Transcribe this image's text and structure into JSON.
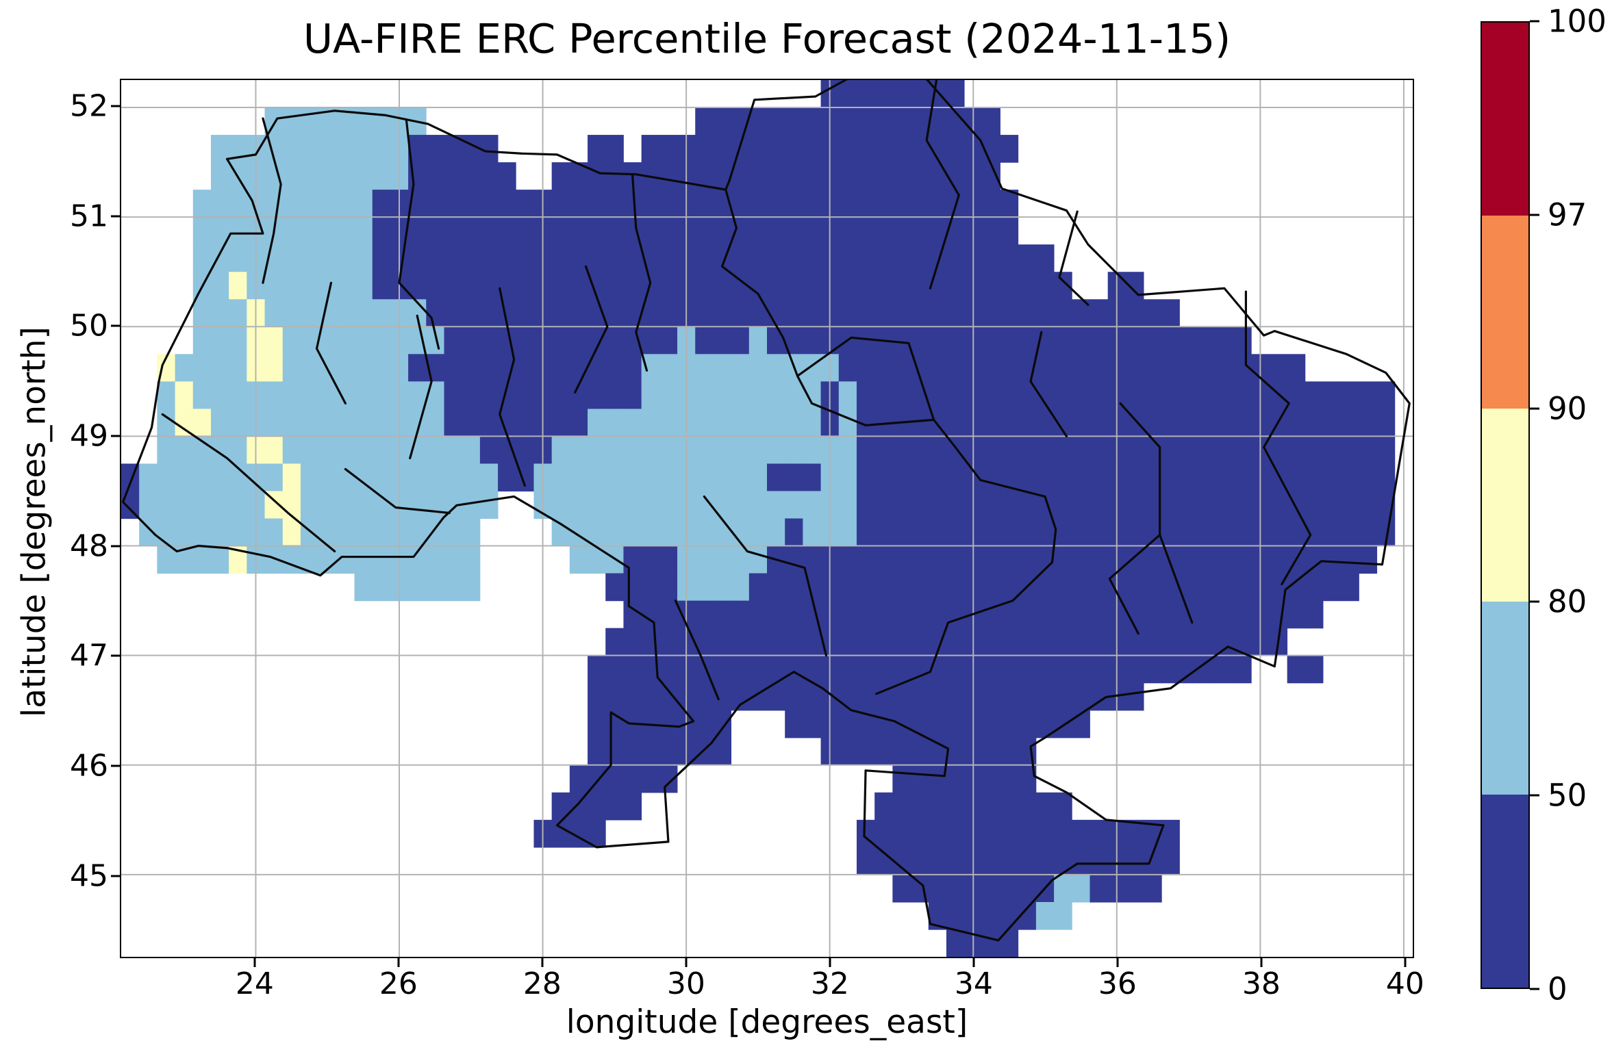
{
  "title": "UA-FIRE ERC Percentile Forecast (2024-11-15)",
  "chart_data": {
    "type": "heatmap",
    "title": "UA-FIRE ERC Percentile Forecast (2024-11-15)",
    "xlabel": "longitude [degrees_east]",
    "ylabel": "latitude [degrees_north]",
    "lon_range": [
      22.125,
      40.125
    ],
    "lat_range": [
      44.25,
      52.25
    ],
    "cell_size_deg": 0.25,
    "x_ticks": [
      24,
      26,
      28,
      30,
      32,
      34,
      36,
      38,
      40
    ],
    "y_ticks": [
      52,
      51,
      50,
      49,
      48,
      47,
      46,
      45
    ],
    "grid_on": true,
    "grid_color": "#b3b3b3",
    "boundary_color": "#0a0a0a",
    "value_classes": {
      "B": {
        "range": "0-50",
        "color": "#333a94"
      },
      "L": {
        "range": "50-80",
        "color": "#8ec4de"
      },
      "Y": {
        "range": "80-90",
        "color": "#fdfdc1"
      }
    },
    "grid_rows_top_to_bottom": [
      ".......................................BBBBBBBB.........................",
      "........LLLLLLLLL...............BBBBBBBBBBBBBBBBB.......................",
      ".....LLLLLLLLLLLBBBBB.....BB.BBBBBBBBBBBBBBBBBBBBB......................",
      ".....LLLLLLLLLLLBBBBBB..BBBBBBBBBBBBBBBBBBBBBBBBB.......................",
      "....LLLLLLLLLLBBBBBBBBBBBBBBBBBBBBBBBBBBBBBBBBBBBB......................",
      "....LLLLLLLLLLBBBBBBBBBBBBBBBBBBBBBBBBBBBBBBBBBBBB......................",
      "....LLLLLLLLLLBBBBBBBBBBBBBBBBBBBBBBBBBBBBBBBBBBBBBB....................",
      "....LLYLLLLLLLBBBBBBBBBBBBBBBBBBBBBBBBBBBBBBBBBBBBBBB..BB.............",
      "....LLLYLLLLLLLLLBBBBBBBBBBBBBBBBBBBBBBBBBBBBBBBBBBBBBBBBBB............",
      "....LLLYYLLLLLLLLLBBBBBBBBBBBBBLBBBLBBBBBBBBBBBBBBBBBBBBBBBBBBB.........",
      "..YLLLLYYLLLLLLLBBBBBBBBBBBBBLLLLLLLLLLLBBBBBBBBBBBBBBBBBBBBBBBBBB......",
      "..LYLLLLLLLLLLLLLLBBBBBBBBBBBLLLLLLLLLLBLBBBBBBBBBBBBBBBBBBBBBBBBBBBBBB",
      "..LYYLLLLLLLLLLLLLBBBBBBBBLLLLLLLLLLLLLBLBBBBBBBBBBBBBBBBBBBBBBBBBBBBBB",
      "..LLLLLYYLLLLLLLLLLLBBBBLLLLLLLLLLLLLLLLLBBBBBBBBBBBBBBBBBBBBBBBBBBBBBB",
      "BLLLLLLLLYLLLLLLLLLLLBBLLLLLLLLLLLLLBBBLLBBBBBBBBBBBBBBBBBBBBBBBBBBBBBB",
      "BLLLLLLLYYLLLLLLLLLLL..LLLLLLLLLLLLLLLLLLBBBBBBBBBBBBBBBBBBBBBBBBBBBBBB",
      ".LLLLLLLLYLLLLLLLLLL....LLLLLLLLLLLLLBLLLBBBBBBBBBBBBBBBBBBBBBBBBBBBBBB",
      "..LLLLYLLLLLLLLLLLLL.....LLLBBBLLLLLBBBBBBBBBBBBBBBBBBBBBBBBBBBBBBBBBB.",
      ".............LLLLLLL.......BBBBLLLLBBBBBBBBBBBBBBBBBBBBBBBBBBBBBBBBBB..",
      "............................BBBBBBBBBBBBBBBBBBBBBBBBBBBBBBBBBBBBBBB...",
      "...........................BBBBBBBBBBBBBBBBBBBBBBBBBBBBBBBBBBBBBB.....",
      "..........................BBBBBBBBBBBBBBBBBBBBBBBBBBBBBBBBBBBBB..BB.......",
      "..........................BBBBBBBBBBBBBBBBBBBBBBBBBBBBBBB...............",
      "..........................BBBBBBBB...BBBBBBBBBBBBBBBBB...................",
      "..........................BBBBBBBB.....BBBBBBBBBBBB.....................",
      ".........................BBBBBB............BBBBBBBB.....................",
      "........................BBBBB.............BBBBBBBBBBB...................",
      ".......................BBBB..............BBBBBBBBBBBBBBBBBB.............",
      ".........................................BBBBBBBBBBBBBBBBBB.............",
      "...........................................BBBBBBBBBLLBBBB..............",
      ".............................................BBBBBBLL...................",
      "..............................................BBBB......................"
    ],
    "colorbar": {
      "levels": [
        0,
        50,
        80,
        90,
        97,
        100
      ],
      "tick_labels_top_to_bottom": [
        "100",
        "97",
        "90",
        "80",
        "50",
        "0"
      ],
      "segment_colors_top_to_bottom": [
        "#a50026",
        "#f6894e",
        "#fdfdc1",
        "#8ec4de",
        "#333a94"
      ],
      "spacing": "uniform"
    },
    "boundaries": {
      "outline": [
        [
          22.65,
          49.5
        ],
        [
          22.55,
          49.08
        ],
        [
          22.15,
          48.4
        ],
        [
          22.6,
          48.1
        ],
        [
          22.9,
          47.95
        ],
        [
          23.2,
          48.0
        ],
        [
          23.6,
          47.98
        ],
        [
          24.2,
          47.9
        ],
        [
          24.9,
          47.73
        ],
        [
          25.2,
          47.9
        ],
        [
          26.2,
          47.9
        ],
        [
          26.62,
          48.26
        ],
        [
          26.8,
          48.37
        ],
        [
          27.6,
          48.45
        ],
        [
          28.25,
          48.2
        ],
        [
          29.2,
          47.8
        ],
        [
          29.2,
          47.45
        ],
        [
          29.55,
          47.3
        ],
        [
          29.6,
          46.8
        ],
        [
          30.1,
          46.4
        ],
        [
          29.9,
          46.35
        ],
        [
          29.2,
          46.38
        ],
        [
          28.95,
          46.48
        ],
        [
          28.95,
          46.0
        ],
        [
          28.5,
          45.65
        ],
        [
          28.2,
          45.45
        ],
        [
          28.75,
          45.25
        ],
        [
          29.75,
          45.3
        ],
        [
          29.7,
          45.8
        ],
        [
          30.35,
          46.2
        ],
        [
          30.75,
          46.55
        ],
        [
          31.5,
          46.85
        ],
        [
          31.9,
          46.7
        ],
        [
          32.3,
          46.5
        ],
        [
          32.9,
          46.4
        ],
        [
          33.65,
          46.15
        ],
        [
          33.6,
          45.9
        ],
        [
          32.5,
          45.95
        ],
        [
          32.48,
          45.35
        ],
        [
          33.3,
          44.9
        ],
        [
          33.4,
          44.55
        ],
        [
          34.35,
          44.4
        ],
        [
          35.1,
          44.95
        ],
        [
          35.45,
          45.1
        ],
        [
          36.45,
          45.1
        ],
        [
          36.65,
          45.45
        ],
        [
          35.85,
          45.5
        ],
        [
          35.3,
          45.75
        ],
        [
          34.85,
          45.9
        ],
        [
          34.8,
          46.17
        ],
        [
          35.0,
          46.25
        ],
        [
          35.85,
          46.62
        ],
        [
          36.75,
          46.7
        ],
        [
          37.55,
          47.08
        ],
        [
          38.2,
          46.9
        ],
        [
          38.25,
          47.12
        ],
        [
          38.35,
          47.6
        ],
        [
          38.85,
          47.86
        ],
        [
          39.7,
          47.83
        ],
        [
          39.95,
          48.8
        ],
        [
          40.08,
          49.3
        ],
        [
          39.75,
          49.58
        ],
        [
          39.2,
          49.75
        ],
        [
          38.2,
          49.96
        ],
        [
          38.05,
          49.92
        ],
        [
          37.5,
          50.35
        ],
        [
          36.3,
          50.29
        ],
        [
          35.6,
          50.75
        ],
        [
          35.3,
          51.06
        ],
        [
          34.4,
          51.26
        ],
        [
          34.1,
          51.7
        ],
        [
          33.2,
          52.37
        ],
        [
          32.3,
          52.28
        ],
        [
          31.8,
          52.1
        ],
        [
          30.95,
          52.07
        ],
        [
          30.6,
          51.33
        ],
        [
          30.55,
          51.25
        ],
        [
          29.3,
          51.39
        ],
        [
          28.8,
          51.4
        ],
        [
          28.2,
          51.57
        ],
        [
          27.7,
          51.58
        ],
        [
          27.2,
          51.6
        ],
        [
          26.4,
          51.85
        ],
        [
          25.8,
          51.93
        ],
        [
          25.1,
          51.97
        ],
        [
          24.3,
          51.9
        ],
        [
          24.0,
          51.57
        ],
        [
          23.6,
          51.53
        ],
        [
          23.95,
          51.15
        ],
        [
          24.1,
          50.85
        ],
        [
          23.65,
          50.85
        ],
        [
          23.2,
          50.3
        ],
        [
          22.7,
          49.65
        ],
        [
          22.65,
          49.5
        ]
      ],
      "internal": [
        [
          [
            24.1,
            51.9
          ],
          [
            24.35,
            51.3
          ],
          [
            24.25,
            50.85
          ],
          [
            24.1,
            50.4
          ]
        ],
        [
          [
            26.1,
            51.88
          ],
          [
            26.2,
            51.3
          ],
          [
            26.0,
            50.4
          ],
          [
            26.45,
            50.08
          ],
          [
            26.55,
            49.8
          ]
        ],
        [
          [
            29.25,
            51.39
          ],
          [
            29.3,
            50.9
          ],
          [
            29.5,
            50.4
          ],
          [
            29.3,
            49.95
          ],
          [
            29.45,
            49.6
          ]
        ],
        [
          [
            30.55,
            51.25
          ],
          [
            30.7,
            50.9
          ],
          [
            30.5,
            50.55
          ],
          [
            31.0,
            50.3
          ],
          [
            31.35,
            49.9
          ],
          [
            31.55,
            49.55
          ],
          [
            31.75,
            49.3
          ],
          [
            32.5,
            49.1
          ],
          [
            33.45,
            49.15
          ],
          [
            33.75,
            48.9
          ],
          [
            34.1,
            48.6
          ],
          [
            35.0,
            48.45
          ],
          [
            35.15,
            48.15
          ],
          [
            35.1,
            47.85
          ],
          [
            34.55,
            47.5
          ],
          [
            33.65,
            47.3
          ],
          [
            33.4,
            46.85
          ],
          [
            32.65,
            46.65
          ]
        ],
        [
          [
            33.5,
            52.3
          ],
          [
            33.35,
            51.7
          ],
          [
            33.8,
            51.2
          ],
          [
            33.4,
            50.35
          ]
        ],
        [
          [
            35.45,
            51.05
          ],
          [
            35.2,
            50.45
          ],
          [
            35.6,
            50.2
          ]
        ],
        [
          [
            37.8,
            50.32
          ],
          [
            37.8,
            49.65
          ],
          [
            38.4,
            49.3
          ],
          [
            38.05,
            48.9
          ]
        ],
        [
          [
            38.05,
            48.9
          ],
          [
            38.7,
            48.1
          ],
          [
            38.3,
            47.65
          ]
        ],
        [
          [
            36.05,
            49.3
          ],
          [
            36.6,
            48.9
          ],
          [
            36.6,
            48.1
          ],
          [
            37.05,
            47.3
          ]
        ],
        [
          [
            27.4,
            50.35
          ],
          [
            27.6,
            49.7
          ],
          [
            27.4,
            49.2
          ],
          [
            27.75,
            48.55
          ]
        ],
        [
          [
            26.25,
            50.1
          ],
          [
            26.45,
            49.5
          ],
          [
            26.15,
            48.8
          ]
        ],
        [
          [
            25.05,
            50.4
          ],
          [
            24.85,
            49.8
          ],
          [
            25.25,
            49.3
          ]
        ],
        [
          [
            22.7,
            49.2
          ],
          [
            23.6,
            48.8
          ],
          [
            24.45,
            48.3
          ],
          [
            25.1,
            47.95
          ]
        ],
        [
          [
            25.25,
            48.7
          ],
          [
            25.95,
            48.35
          ],
          [
            26.7,
            48.3
          ]
        ],
        [
          [
            29.85,
            47.5
          ],
          [
            30.2,
            47.0
          ],
          [
            30.45,
            46.6
          ]
        ],
        [
          [
            30.25,
            48.45
          ],
          [
            30.85,
            47.95
          ],
          [
            31.65,
            47.8
          ],
          [
            31.95,
            47.0
          ]
        ],
        [
          [
            31.55,
            49.55
          ],
          [
            32.3,
            49.9
          ],
          [
            33.1,
            49.85
          ],
          [
            33.45,
            49.15
          ]
        ],
        [
          [
            28.6,
            50.55
          ],
          [
            28.9,
            50.0
          ],
          [
            28.45,
            49.4
          ]
        ],
        [
          [
            34.95,
            49.95
          ],
          [
            34.8,
            49.5
          ],
          [
            35.3,
            49.0
          ]
        ],
        [
          [
            36.6,
            48.1
          ],
          [
            35.9,
            47.7
          ],
          [
            36.3,
            47.2
          ]
        ]
      ]
    }
  }
}
